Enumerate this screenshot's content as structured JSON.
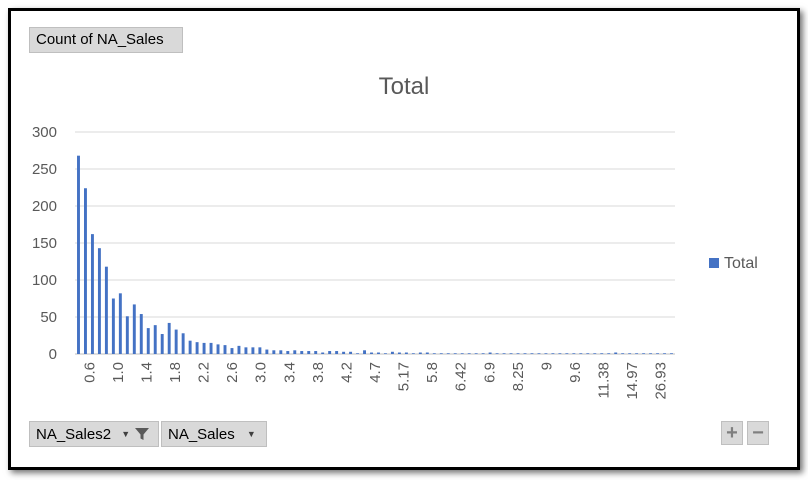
{
  "header": {
    "value_field_label": "Count of NA_Sales"
  },
  "footer": {
    "axis_field_1": "NA_Sales2",
    "axis_field_2": "NA_Sales",
    "dropdown_icon": "chevron-down-icon",
    "filter_icon": "funnel-icon",
    "zoom_in_label": "+",
    "zoom_out_label": "−"
  },
  "colors": {
    "bar": "#4472c4",
    "grid": "#d9d9d9",
    "axis_text": "#595959"
  },
  "chart_data": {
    "type": "bar",
    "title": "Total",
    "xlabel": "",
    "ylabel": "",
    "ylim": [
      0,
      300
    ],
    "yticks": [
      0,
      50,
      100,
      150,
      200,
      250,
      300
    ],
    "grid": true,
    "legend_position": "right",
    "xtick_labels": [
      "0.6",
      "1.0",
      "1.4",
      "1.8",
      "2.2",
      "2.6",
      "3.0",
      "3.4",
      "3.8",
      "4.2",
      "4.7",
      "5.17",
      "5.8",
      "6.42",
      "6.9",
      "8.25",
      "9",
      "9.6",
      "11.38",
      "14.97",
      "26.93"
    ],
    "series": [
      {
        "name": "Total",
        "values": [
          268,
          224,
          162,
          143,
          118,
          75,
          82,
          51,
          67,
          54,
          35,
          39,
          27,
          42,
          33,
          28,
          18,
          16,
          15,
          15,
          13,
          12,
          8,
          11,
          9,
          9,
          9,
          6,
          5,
          5,
          4,
          5,
          4,
          4,
          4,
          2,
          4,
          4,
          3,
          3,
          1,
          5,
          2,
          2,
          1,
          3,
          2,
          2,
          1,
          2,
          2,
          1,
          1,
          1,
          1,
          1,
          1,
          1,
          1,
          2,
          1,
          1,
          1,
          1,
          1,
          1,
          1,
          1,
          1,
          1,
          1,
          1,
          1,
          1,
          1,
          1,
          1,
          2,
          1,
          1,
          1,
          1,
          1,
          1,
          1,
          1
        ]
      }
    ]
  }
}
